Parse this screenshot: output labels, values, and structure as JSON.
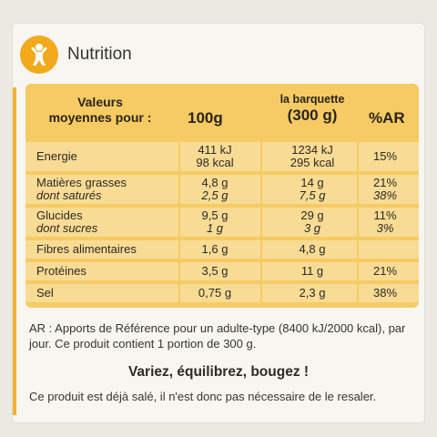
{
  "header": {
    "title": "Nutrition",
    "icon": "active-person-icon",
    "accent": "#f2a91b"
  },
  "table": {
    "col_label": [
      "Valeurs",
      "moyennes pour :"
    ],
    "col_100": "100g",
    "col_portion": [
      "la barquette",
      "(300 g)"
    ],
    "col_ar": "%AR",
    "rows": [
      {
        "name": "Energie",
        "v100": [
          "411 kJ",
          "98 kcal"
        ],
        "portion": [
          "1234 kJ",
          "295 kcal"
        ],
        "ar": "15%"
      },
      {
        "name": "Matières grasses",
        "sub": "dont saturés",
        "v100": "4,8 g",
        "v100_sub": "2,5 g",
        "portion": "14 g",
        "portion_sub": "7,5 g",
        "ar": "21%",
        "ar_sub": "38%"
      },
      {
        "name": "Glucides",
        "sub": "dont sucres",
        "v100": "9,5 g",
        "v100_sub": "1 g",
        "portion": "29 g",
        "portion_sub": "3 g",
        "ar": "11%",
        "ar_sub": "3%"
      },
      {
        "name": "Fibres alimentaires",
        "v100": "1,6 g",
        "portion": "4,8 g",
        "ar": ""
      },
      {
        "name": "Protéines",
        "v100": "3,5 g",
        "portion": "11 g",
        "ar": "21%"
      },
      {
        "name": "Sel",
        "v100": "0,75 g",
        "portion": "2,3 g",
        "ar": "38%"
      }
    ]
  },
  "footnote": "AR : Apports de Référence pour un adulte-type (8400 kJ/2000 kcal), par jour. Ce produit contient 1 portion de 300 g.",
  "slogan": "Variez, équilibrez, bougez !",
  "salt_note": "Ce produit est déjà salé, il n'est donc pas nécessaire de le resaler."
}
